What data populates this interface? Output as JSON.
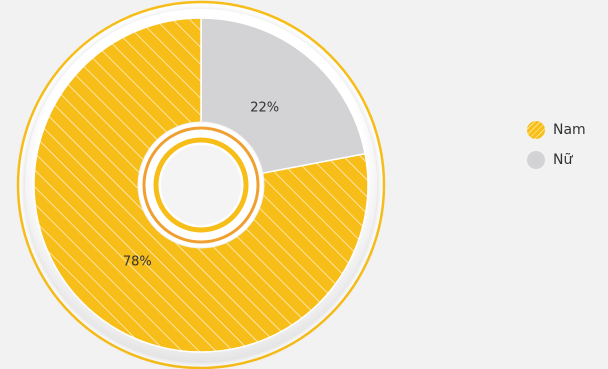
{
  "chart_data": {
    "type": "pie",
    "categories": [
      "Nam",
      "Nữ"
    ],
    "values": [
      78,
      22
    ],
    "value_labels": [
      "78%",
      "22%"
    ],
    "colors": [
      "#f7bd18",
      "#d3d3d6"
    ],
    "hatched": [
      true,
      false
    ],
    "start_category": "Nữ",
    "legend_position": "right",
    "donut_center": true
  },
  "legend": {
    "items": [
      {
        "label": "Nam",
        "color": "#f7bd18"
      },
      {
        "label": "Nữ",
        "color": "#d3d3d6"
      }
    ]
  }
}
